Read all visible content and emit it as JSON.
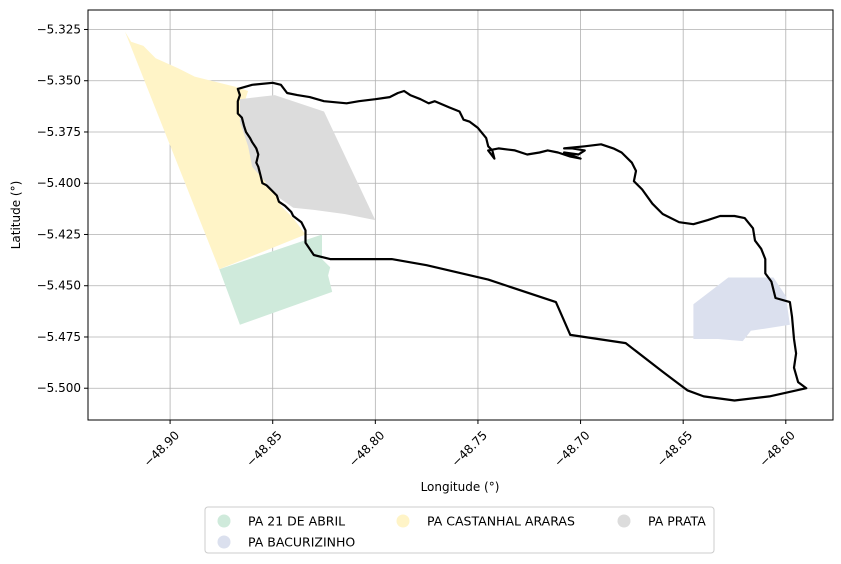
{
  "chart_data": {
    "type": "map",
    "xlabel": "Longitude (°)",
    "ylabel": "Latitude (°)",
    "xlim": [
      -48.94,
      -48.577
    ],
    "ylim": [
      -5.5155,
      -5.3155
    ],
    "grid": true,
    "x_ticks": [
      {
        "value": -48.9,
        "label": "−48.90"
      },
      {
        "value": -48.85,
        "label": "−48.85"
      },
      {
        "value": -48.8,
        "label": "−48.80"
      },
      {
        "value": -48.75,
        "label": "−48.75"
      },
      {
        "value": -48.7,
        "label": "−48.70"
      },
      {
        "value": -48.65,
        "label": "−48.65"
      },
      {
        "value": -48.6,
        "label": "−48.60"
      }
    ],
    "y_ticks": [
      {
        "value": -5.325,
        "label": "−5.325"
      },
      {
        "value": -5.35,
        "label": "−5.350"
      },
      {
        "value": -5.375,
        "label": "−5.375"
      },
      {
        "value": -5.4,
        "label": "−5.400"
      },
      {
        "value": -5.425,
        "label": "−5.425"
      },
      {
        "value": -5.45,
        "label": "−5.450"
      },
      {
        "value": -5.475,
        "label": "−5.475"
      },
      {
        "value": -5.5,
        "label": "−5.500"
      }
    ],
    "legend_position": "bottom-center",
    "areas": [
      {
        "name": "PA 21 DE ABRIL",
        "color": "#cfeadb",
        "coords": [
          [
            -48.876,
            -5.442
          ],
          [
            -48.826,
            -5.425
          ],
          [
            -48.826,
            -5.437
          ],
          [
            -48.822,
            -5.441
          ],
          [
            -48.823,
            -5.445
          ],
          [
            -48.821,
            -5.453
          ],
          [
            -48.866,
            -5.469
          ]
        ]
      },
      {
        "name": "PA BACURIZINHO",
        "color": "#dbe0ee",
        "coords": [
          [
            -48.645,
            -5.459
          ],
          [
            -48.628,
            -5.446
          ],
          [
            -48.606,
            -5.446
          ],
          [
            -48.6,
            -5.455
          ],
          [
            -48.598,
            -5.469
          ],
          [
            -48.617,
            -5.472
          ],
          [
            -48.621,
            -5.477
          ],
          [
            -48.633,
            -5.476
          ],
          [
            -48.645,
            -5.476
          ]
        ]
      },
      {
        "name": "PA CASTANHAL ARARAS",
        "color": "#fff4c7",
        "coords": [
          [
            -48.922,
            -5.326
          ],
          [
            -48.919,
            -5.331
          ],
          [
            -48.913,
            -5.333
          ],
          [
            -48.907,
            -5.339
          ],
          [
            -48.896,
            -5.344
          ],
          [
            -48.888,
            -5.348
          ],
          [
            -48.88,
            -5.35
          ],
          [
            -48.868,
            -5.353
          ],
          [
            -48.862,
            -5.355
          ],
          [
            -48.866,
            -5.367
          ],
          [
            -48.862,
            -5.372
          ],
          [
            -48.858,
            -5.385
          ],
          [
            -48.855,
            -5.394
          ],
          [
            -48.853,
            -5.402
          ],
          [
            -48.849,
            -5.404
          ],
          [
            -48.846,
            -5.411
          ],
          [
            -48.84,
            -5.417
          ],
          [
            -48.834,
            -5.425
          ],
          [
            -48.876,
            -5.442
          ]
        ]
      },
      {
        "name": "PA PRATA",
        "color": "#dcdcdc",
        "coords": [
          [
            -48.866,
            -5.359
          ],
          [
            -48.849,
            -5.357
          ],
          [
            -48.825,
            -5.365
          ],
          [
            -48.8,
            -5.418
          ],
          [
            -48.815,
            -5.415
          ],
          [
            -48.83,
            -5.413
          ],
          [
            -48.84,
            -5.412
          ],
          [
            -48.847,
            -5.407
          ],
          [
            -48.853,
            -5.4
          ],
          [
            -48.86,
            -5.392
          ],
          [
            -48.862,
            -5.382
          ],
          [
            -48.866,
            -5.37
          ]
        ]
      }
    ],
    "outline": {
      "color": "#000000",
      "coords": [
        [
          -48.867,
          -5.354
        ],
        [
          -48.86,
          -5.352
        ],
        [
          -48.85,
          -5.351
        ],
        [
          -48.846,
          -5.352
        ],
        [
          -48.843,
          -5.356
        ],
        [
          -48.838,
          -5.357
        ],
        [
          -48.832,
          -5.358
        ],
        [
          -48.825,
          -5.36
        ],
        [
          -48.814,
          -5.361
        ],
        [
          -48.808,
          -5.36
        ],
        [
          -48.8,
          -5.359
        ],
        [
          -48.793,
          -5.358
        ],
        [
          -48.789,
          -5.356
        ],
        [
          -48.786,
          -5.355
        ],
        [
          -48.783,
          -5.357
        ],
        [
          -48.778,
          -5.359
        ],
        [
          -48.774,
          -5.361
        ],
        [
          -48.771,
          -5.36
        ],
        [
          -48.764,
          -5.363
        ],
        [
          -48.759,
          -5.365
        ],
        [
          -48.757,
          -5.369
        ],
        [
          -48.754,
          -5.37
        ],
        [
          -48.75,
          -5.373
        ],
        [
          -48.746,
          -5.378
        ],
        [
          -48.745,
          -5.382
        ],
        [
          -48.743,
          -5.384
        ],
        [
          -48.742,
          -5.388
        ],
        [
          -48.745,
          -5.384
        ],
        [
          -48.74,
          -5.383
        ],
        [
          -48.732,
          -5.384
        ],
        [
          -48.726,
          -5.386
        ],
        [
          -48.72,
          -5.385
        ],
        [
          -48.716,
          -5.384
        ],
        [
          -48.711,
          -5.385
        ],
        [
          -48.705,
          -5.387
        ],
        [
          -48.7,
          -5.388
        ],
        [
          -48.708,
          -5.385
        ],
        [
          -48.701,
          -5.386
        ],
        [
          -48.698,
          -5.384
        ],
        [
          -48.704,
          -5.383
        ],
        [
          -48.708,
          -5.383
        ],
        [
          -48.698,
          -5.382
        ],
        [
          -48.69,
          -5.381
        ],
        [
          -48.684,
          -5.383
        ],
        [
          -48.68,
          -5.385
        ],
        [
          -48.675,
          -5.39
        ],
        [
          -48.673,
          -5.394
        ],
        [
          -48.674,
          -5.399
        ],
        [
          -48.67,
          -5.403
        ],
        [
          -48.665,
          -5.41
        ],
        [
          -48.66,
          -5.415
        ],
        [
          -48.652,
          -5.419
        ],
        [
          -48.645,
          -5.42
        ],
        [
          -48.638,
          -5.418
        ],
        [
          -48.632,
          -5.416
        ],
        [
          -48.625,
          -5.416
        ],
        [
          -48.62,
          -5.417
        ],
        [
          -48.616,
          -5.422
        ],
        [
          -48.615,
          -5.428
        ],
        [
          -48.612,
          -5.432
        ],
        [
          -48.61,
          -5.437
        ],
        [
          -48.61,
          -5.444
        ],
        [
          -48.607,
          -5.448
        ],
        [
          -48.605,
          -5.456
        ],
        [
          -48.598,
          -5.458
        ],
        [
          -48.597,
          -5.465
        ],
        [
          -48.596,
          -5.476
        ],
        [
          -48.595,
          -5.483
        ],
        [
          -48.596,
          -5.49
        ],
        [
          -48.594,
          -5.497
        ],
        [
          -48.59,
          -5.5
        ],
        [
          -48.608,
          -5.504
        ],
        [
          -48.625,
          -5.506
        ],
        [
          -48.64,
          -5.504
        ],
        [
          -48.648,
          -5.501
        ],
        [
          -48.66,
          -5.492
        ],
        [
          -48.678,
          -5.478
        ],
        [
          -48.705,
          -5.474
        ],
        [
          -48.712,
          -5.458
        ],
        [
          -48.745,
          -5.447
        ],
        [
          -48.775,
          -5.44
        ],
        [
          -48.792,
          -5.437
        ],
        [
          -48.822,
          -5.437
        ],
        [
          -48.83,
          -5.435
        ],
        [
          -48.834,
          -5.429
        ],
        [
          -48.834,
          -5.423
        ],
        [
          -48.836,
          -5.419
        ],
        [
          -48.84,
          -5.416
        ],
        [
          -48.841,
          -5.414
        ],
        [
          -48.844,
          -5.411
        ],
        [
          -48.847,
          -5.409
        ],
        [
          -48.848,
          -5.406
        ],
        [
          -48.85,
          -5.404
        ],
        [
          -48.852,
          -5.402
        ],
        [
          -48.853,
          -5.401
        ],
        [
          -48.855,
          -5.4
        ],
        [
          -48.856,
          -5.396
        ],
        [
          -48.857,
          -5.392
        ],
        [
          -48.858,
          -5.39
        ],
        [
          -48.857,
          -5.386
        ],
        [
          -48.858,
          -5.383
        ],
        [
          -48.86,
          -5.38
        ],
        [
          -48.861,
          -5.378
        ],
        [
          -48.863,
          -5.375
        ],
        [
          -48.864,
          -5.372
        ],
        [
          -48.865,
          -5.368
        ],
        [
          -48.867,
          -5.366
        ],
        [
          -48.867,
          -5.36
        ],
        [
          -48.866,
          -5.357
        ],
        [
          -48.867,
          -5.354
        ]
      ]
    }
  }
}
